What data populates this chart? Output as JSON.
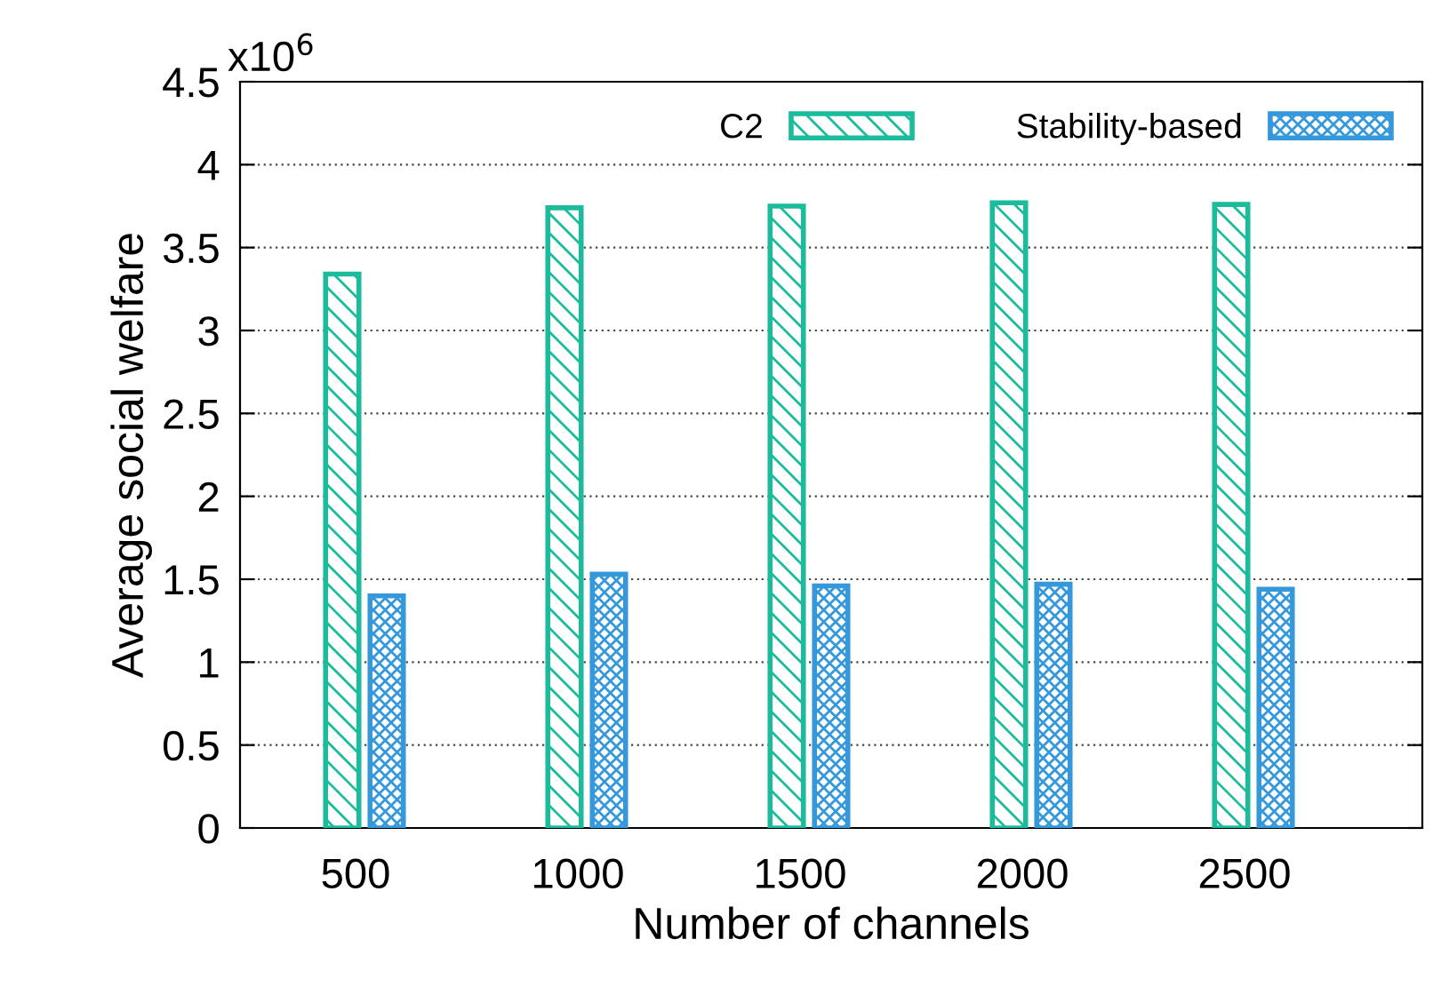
{
  "chart_data": {
    "type": "bar",
    "xlabel": "Number of channels",
    "ylabel": "Average social welfare",
    "annotations": [
      "x10$^{6}$"
    ],
    "categories": [
      "500",
      "1000",
      "1500",
      "2000",
      "2500"
    ],
    "series": [
      {
        "name": "C2",
        "color": "#1abc9c",
        "values": [
          3.34,
          3.74,
          3.75,
          3.77,
          3.76
        ]
      },
      {
        "name": "Stability-based",
        "color": "#3498db",
        "values": [
          1.4,
          1.53,
          1.46,
          1.47,
          1.44
        ]
      }
    ],
    "ylim": [
      0,
      4.5
    ],
    "yticks": [
      0,
      0.5,
      1,
      1.5,
      2,
      2.5,
      3,
      3.5,
      4,
      4.5
    ],
    "grid": "y",
    "legend": "top"
  }
}
